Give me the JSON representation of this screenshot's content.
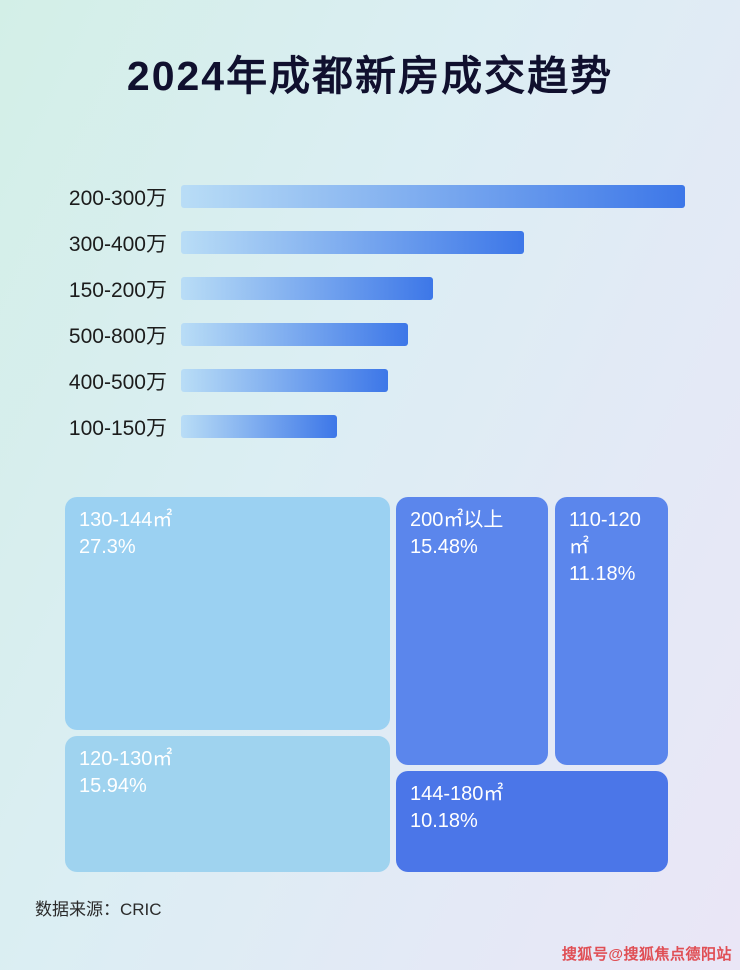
{
  "page": {
    "title": "2024年成都新房成交趋势",
    "source": "数据来源：CRIC",
    "watermark": "搜狐号@搜狐焦点德阳站"
  },
  "colors": {
    "bar_gradient_start": "#b9ddf6",
    "bar_gradient_end": "#3d77e8",
    "title_color": "#10102e",
    "watermark_color": "#e04f55"
  },
  "chart_data": [
    {
      "type": "bar",
      "title": "2024年成都新房成交趋势",
      "orientation": "horizontal",
      "categories": [
        "200-300万",
        "300-400万",
        "150-200万",
        "500-800万",
        "400-500万",
        "100-150万"
      ],
      "values": [
        100,
        68,
        50,
        45,
        41,
        31
      ],
      "value_note": "relative bar lengths in percent of longest bar; no numeric axis shown in image",
      "xlabel": "",
      "ylabel": "",
      "grid": false,
      "legend": false
    },
    {
      "type": "treemap",
      "title": "",
      "items": [
        {
          "label": "130-144㎡",
          "value": "27.3%",
          "color": "#9bd1f2",
          "pos": "a"
        },
        {
          "label": "200㎡以上",
          "value": "15.48%",
          "color": "#5b86ec",
          "pos": "b"
        },
        {
          "label": "110-120㎡",
          "value": "11.18%",
          "color": "#5b86ec",
          "pos": "c"
        },
        {
          "label": "120-130㎡",
          "value": "15.94%",
          "color": "#9fd3ef",
          "pos": "d"
        },
        {
          "label": "144-180㎡",
          "value": "10.18%",
          "color": "#4b76e8",
          "pos": "e"
        }
      ]
    }
  ]
}
